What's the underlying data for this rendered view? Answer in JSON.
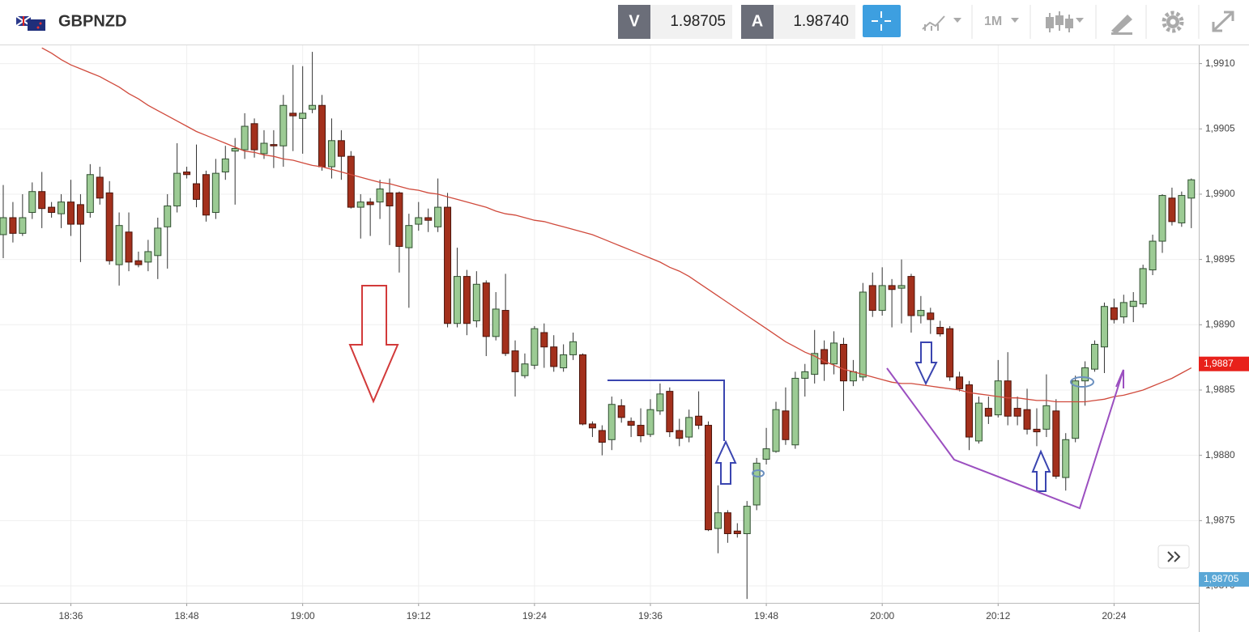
{
  "toolbar": {
    "symbol": "GBPNZD",
    "bid_label": "V",
    "bid": "1.98705",
    "ask_label": "A",
    "ask": "1.98740",
    "timeframe": "1M"
  },
  "chart_data": {
    "type": "candlestick",
    "categories": [
      null,
      null,
      null,
      null,
      null,
      null,
      null,
      "18:36",
      null,
      null,
      null,
      null,
      null,
      null,
      null,
      null,
      null,
      null,
      null,
      "18:48",
      null,
      null,
      null,
      null,
      null,
      null,
      null,
      null,
      null,
      null,
      null,
      "19:00",
      null,
      null,
      null,
      null,
      null,
      null,
      null,
      null,
      null,
      null,
      null,
      "19:12",
      null,
      null,
      null,
      null,
      null,
      null,
      null,
      null,
      null,
      null,
      null,
      "19:24",
      null,
      null,
      null,
      null,
      null,
      null,
      null,
      null,
      null,
      null,
      null,
      "19:36",
      null,
      null,
      null,
      null,
      null,
      null,
      null,
      null,
      null,
      null,
      null,
      "19:48",
      null,
      null,
      null,
      null,
      null,
      null,
      null,
      null,
      null,
      null,
      null,
      "20:00",
      null,
      null,
      null,
      null,
      null,
      null,
      null,
      null,
      null,
      null,
      null,
      "20:12",
      null,
      null,
      null,
      null,
      null,
      null,
      null,
      null,
      null,
      null,
      null,
      "20:24",
      null,
      null,
      null,
      null,
      null,
      null,
      null,
      null
    ],
    "open": [
      1.98969,
      1.98982,
      1.9897,
      1.98986,
      1.99002,
      1.9899,
      1.98985,
      1.98994,
      1.98992,
      1.98986,
      1.99013,
      1.99001,
      1.98946,
      1.98971,
      1.98949,
      1.98948,
      1.98953,
      1.98975,
      1.98991,
      1.99017,
      1.99008,
      1.99015,
      1.98986,
      1.99017,
      1.99033,
      1.99034,
      1.99054,
      1.99031,
      1.99038,
      1.99037,
      1.99062,
      1.99058,
      1.99065,
      1.99068,
      1.99021,
      1.99041,
      1.99029,
      1.9899,
      1.98994,
      1.98994,
      1.99001,
      1.99001,
      1.98959,
      1.98977,
      1.98982,
      1.98975,
      1.9899,
      1.98901,
      1.98937,
      1.98903,
      1.98932,
      1.98891,
      1.98911,
      1.9888,
      1.98861,
      1.98869,
      1.98894,
      1.98883,
      1.98867,
      1.98877,
      1.98877,
      1.98824,
      1.98819,
      1.98812,
      1.98838,
      1.98826,
      1.98823,
      1.98816,
      1.98834,
      1.98849,
      1.98819,
      1.98814,
      1.9883,
      1.98823,
      1.98744,
      1.98756,
      1.98742,
      1.9874,
      1.98762,
      1.98797,
      1.98803,
      1.98834,
      1.98808,
      1.98859,
      1.98862,
      1.98881,
      1.9887,
      1.98885,
      1.98857,
      1.9886,
      1.9893,
      1.98911,
      1.9893,
      1.98928,
      1.98937,
      1.98907,
      1.98909,
      1.98898,
      1.98897,
      1.9886,
      1.98854,
      1.98811,
      1.98836,
      1.98831,
      1.98857,
      1.98836,
      1.98835,
      1.9882,
      1.9882,
      1.98834,
      1.98783,
      1.98813,
      1.98857,
      1.98866,
      1.98883,
      1.98913,
      1.98906,
      1.98914,
      1.98916,
      1.98942,
      1.98964,
      1.98997,
      1.98978,
      1.98997
    ],
    "high": [
      1.99007,
      1.98994,
      1.99,
      1.99009,
      1.99017,
      1.98994,
      1.99,
      1.99011,
      1.99,
      1.99023,
      1.99021,
      1.9901,
      1.98986,
      1.98986,
      1.98956,
      1.98965,
      1.98982,
      1.99,
      1.99039,
      1.99021,
      1.99038,
      1.99018,
      1.99027,
      1.99037,
      1.99043,
      1.99062,
      1.99058,
      1.99049,
      1.99049,
      1.99076,
      1.99099,
      1.99098,
      1.99109,
      1.99076,
      1.99058,
      1.99049,
      1.99033,
      1.99,
      1.98997,
      1.99011,
      1.99012,
      1.99002,
      1.98985,
      1.98994,
      1.98989,
      1.99012,
      1.99001,
      1.98959,
      1.98942,
      1.98941,
      1.98934,
      1.98925,
      1.98939,
      1.98888,
      1.98878,
      1.98899,
      1.98901,
      1.98892,
      1.98885,
      1.98894,
      1.98878,
      1.98826,
      1.98823,
      1.98845,
      1.98843,
      1.98829,
      1.98836,
      1.98843,
      1.98855,
      1.98852,
      1.98828,
      1.98835,
      1.98849,
      1.98826,
      1.98777,
      1.98758,
      1.98748,
      1.98765,
      1.98798,
      1.98821,
      1.98841,
      1.98852,
      1.98864,
      1.9887,
      1.98896,
      1.98888,
      1.98895,
      1.9889,
      1.98873,
      1.98932,
      1.9894,
      1.98944,
      1.98935,
      1.9895,
      1.98939,
      1.98922,
      1.98913,
      1.98903,
      1.98899,
      1.98864,
      1.98857,
      1.98845,
      1.98845,
      1.98873,
      1.98879,
      1.98845,
      1.98851,
      1.98836,
      1.98862,
      1.98843,
      1.98817,
      1.98861,
      1.98872,
      1.98888,
      1.98917,
      1.9892,
      1.98923,
      1.98925,
      1.98946,
      1.98969,
      1.99,
      1.99005,
      1.99002,
      1.99012
    ],
    "low": [
      1.98951,
      1.98963,
      1.98968,
      1.98981,
      1.98974,
      1.98982,
      1.98974,
      1.98968,
      1.98948,
      1.98982,
      1.98992,
      1.98946,
      1.9893,
      1.98941,
      1.98944,
      1.98941,
      1.98935,
      1.98943,
      1.98986,
      1.99012,
      1.9899,
      1.98979,
      1.98981,
      1.99011,
      1.98992,
      1.99027,
      1.99028,
      1.99027,
      1.9902,
      1.99021,
      1.99033,
      1.99031,
      1.99062,
      1.99018,
      1.99012,
      1.99011,
      1.98989,
      1.98966,
      1.98968,
      1.98981,
      1.98961,
      1.9894,
      1.98913,
      1.98972,
      1.98971,
      1.98971,
      1.98898,
      1.98898,
      1.98892,
      1.98898,
      1.98876,
      1.98888,
      1.98876,
      1.98845,
      1.98859,
      1.98866,
      1.98867,
      1.98864,
      1.98864,
      1.98873,
      1.98823,
      1.98814,
      1.988,
      1.98804,
      1.98825,
      1.98814,
      1.9881,
      1.98814,
      1.98831,
      1.98814,
      1.98807,
      1.9881,
      1.9882,
      1.98742,
      1.98725,
      1.98733,
      1.98737,
      1.9869,
      1.98758,
      1.98793,
      1.98802,
      1.98808,
      1.98805,
      1.98845,
      1.98855,
      1.98857,
      1.98862,
      1.98834,
      1.98853,
      1.98857,
      1.98906,
      1.98907,
      1.98898,
      1.98901,
      1.98894,
      1.98901,
      1.98893,
      1.98891,
      1.98857,
      1.98849,
      1.98804,
      1.98809,
      1.98824,
      1.98829,
      1.98823,
      1.98823,
      1.98816,
      1.98807,
      1.98814,
      1.98782,
      1.98773,
      1.9881,
      1.98838,
      1.98864,
      1.98863,
      1.98901,
      1.98901,
      1.98902,
      1.98913,
      1.98938,
      1.98955,
      1.98976,
      1.98975,
      1.98974
    ],
    "close": [
      1.98982,
      1.9897,
      1.98982,
      1.99002,
      1.98989,
      1.98986,
      1.98994,
      1.98977,
      1.98977,
      1.99015,
      1.98997,
      1.98949,
      1.98976,
      1.98948,
      1.98946,
      1.98956,
      1.98974,
      1.98991,
      1.99016,
      1.99015,
      1.98996,
      1.98984,
      1.99016,
      1.99027,
      1.99035,
      1.99052,
      1.99034,
      1.99039,
      1.99037,
      1.99068,
      1.9906,
      1.99062,
      1.99068,
      1.99021,
      1.99041,
      1.99029,
      1.9899,
      1.98994,
      1.98992,
      1.99004,
      1.98991,
      1.9896,
      1.98976,
      1.98982,
      1.9898,
      1.9899,
      1.98901,
      1.98937,
      1.98901,
      1.98931,
      1.98891,
      1.98912,
      1.98878,
      1.98864,
      1.9887,
      1.98897,
      1.98883,
      1.98868,
      1.98877,
      1.98887,
      1.98824,
      1.98821,
      1.9881,
      1.98839,
      1.98829,
      1.98823,
      1.98815,
      1.98835,
      1.98847,
      1.98818,
      1.98813,
      1.98829,
      1.98823,
      1.98743,
      1.98756,
      1.9874,
      1.9874,
      1.98761,
      1.98794,
      1.98805,
      1.98835,
      1.98812,
      1.98859,
      1.98864,
      1.98878,
      1.9887,
      1.98886,
      1.98857,
      1.98864,
      1.98925,
      1.98911,
      1.9893,
      1.98927,
      1.9893,
      1.98907,
      1.98911,
      1.98904,
      1.98893,
      1.9886,
      1.98851,
      1.98814,
      1.9884,
      1.9883,
      1.98857,
      1.9883,
      1.9883,
      1.9882,
      1.98818,
      1.98838,
      1.98784,
      1.98812,
      1.98857,
      1.98867,
      1.98885,
      1.98914,
      1.98904,
      1.98917,
      1.98918,
      1.98943,
      1.98964,
      1.98999,
      1.98979,
      1.98999,
      1.99011
    ],
    "up_color": "#9ccb94",
    "down_color": "#a3301c",
    "lines": [
      {
        "color": "#d04a3c",
        "values": [
          null,
          null,
          null,
          null,
          1.99112,
          1.99108,
          1.99103,
          1.99099,
          1.99096,
          1.99093,
          1.9909,
          1.99086,
          1.99082,
          1.99077,
          1.99073,
          1.99068,
          1.99064,
          1.9906,
          1.99056,
          1.99052,
          1.99048,
          1.99045,
          1.99042,
          1.99039,
          1.99036,
          1.99033,
          1.99032,
          1.9903,
          1.99029,
          1.99027,
          1.99026,
          1.99024,
          1.99022,
          1.99021,
          1.99019,
          1.99017,
          1.99015,
          1.99013,
          1.99011,
          1.99009,
          1.99008,
          1.99006,
          1.99004,
          1.99003,
          1.99001,
          1.99,
          1.98998,
          1.98996,
          1.98994,
          1.98992,
          1.9899,
          1.98987,
          1.98985,
          1.98984,
          1.98982,
          1.9898,
          1.98979,
          1.98977,
          1.98975,
          1.98973,
          1.98971,
          1.98969,
          1.98966,
          1.98963,
          1.9896,
          1.98957,
          1.98954,
          1.98951,
          1.98948,
          1.98944,
          1.98941,
          1.98937,
          1.98932,
          1.98927,
          1.98922,
          1.98917,
          1.98912,
          1.98907,
          1.98902,
          1.98897,
          1.98892,
          1.98887,
          1.98883,
          1.98879,
          1.98876,
          1.98872,
          1.98869,
          1.98866,
          1.98864,
          1.98862,
          1.9886,
          1.98858,
          1.98856,
          1.98855,
          1.98855,
          1.98854,
          1.98853,
          1.98852,
          1.98851,
          1.9885,
          1.98848,
          1.98847,
          1.98846,
          1.98845,
          1.98844,
          1.98844,
          1.98843,
          1.98842,
          1.98842,
          1.98841,
          1.98841,
          1.98841,
          1.98841,
          1.98842,
          1.98843,
          1.98845,
          1.98846,
          1.98848,
          1.9885,
          1.98853,
          1.98856,
          1.98859,
          1.98863,
          1.98867
        ]
      }
    ],
    "price_tags": [
      {
        "value": 1.9887,
        "label": "1,9887",
        "color": "#e8211b"
      },
      {
        "value": 1.98705,
        "label": "1,98705",
        "color": "#5aa7d6"
      }
    ],
    "ylim": [
      1.98687,
      1.99114
    ],
    "yticks": [
      {
        "value": 1.991,
        "label": "1,9910"
      },
      {
        "value": 1.9905,
        "label": "1,9905"
      },
      {
        "value": 1.99,
        "label": "1,9900"
      },
      {
        "value": 1.9895,
        "label": "1,9895"
      },
      {
        "value": 1.989,
        "label": "1,9890"
      },
      {
        "value": 1.9885,
        "label": "1,9885"
      },
      {
        "value": 1.988,
        "label": "1,9880"
      },
      {
        "value": 1.9875,
        "label": "1,9875"
      },
      {
        "value": 1.987,
        "label": "1,9870"
      }
    ],
    "grid": true
  }
}
